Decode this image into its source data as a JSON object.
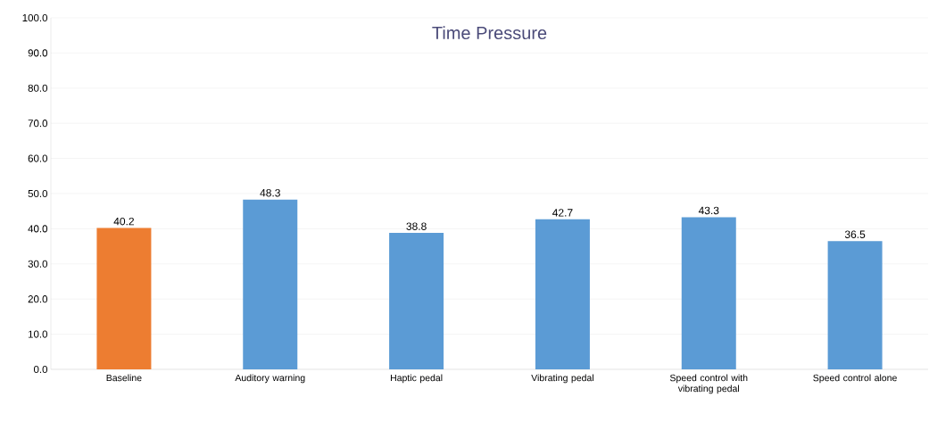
{
  "chart_data": {
    "type": "bar",
    "title": "Time Pressure",
    "categories": [
      "Baseline",
      "Auditory warning",
      "Haptic pedal",
      "Vibrating pedal",
      "Speed control with vibrating pedal",
      "Speed control alone"
    ],
    "values": [
      40.2,
      48.3,
      38.8,
      42.7,
      43.3,
      36.5
    ],
    "colors": [
      "#ed7d31",
      "#5b9bd5",
      "#5b9bd5",
      "#5b9bd5",
      "#5b9bd5",
      "#5b9bd5"
    ],
    "ylim": [
      0,
      100
    ],
    "yticks": [
      {
        "value": 0,
        "label": "0.0"
      },
      {
        "value": 10,
        "label": "10.0"
      },
      {
        "value": 20,
        "label": "20.0"
      },
      {
        "value": 30,
        "label": "30.0"
      },
      {
        "value": 40,
        "label": "40.0"
      },
      {
        "value": 50,
        "label": "50.0"
      },
      {
        "value": 60,
        "label": "60.0"
      },
      {
        "value": 70,
        "label": "70.0"
      },
      {
        "value": 80,
        "label": "80.0"
      },
      {
        "value": 90,
        "label": "90.0"
      },
      {
        "value": 100,
        "label": "100.0"
      }
    ],
    "grid": "y",
    "data_labels": true
  }
}
